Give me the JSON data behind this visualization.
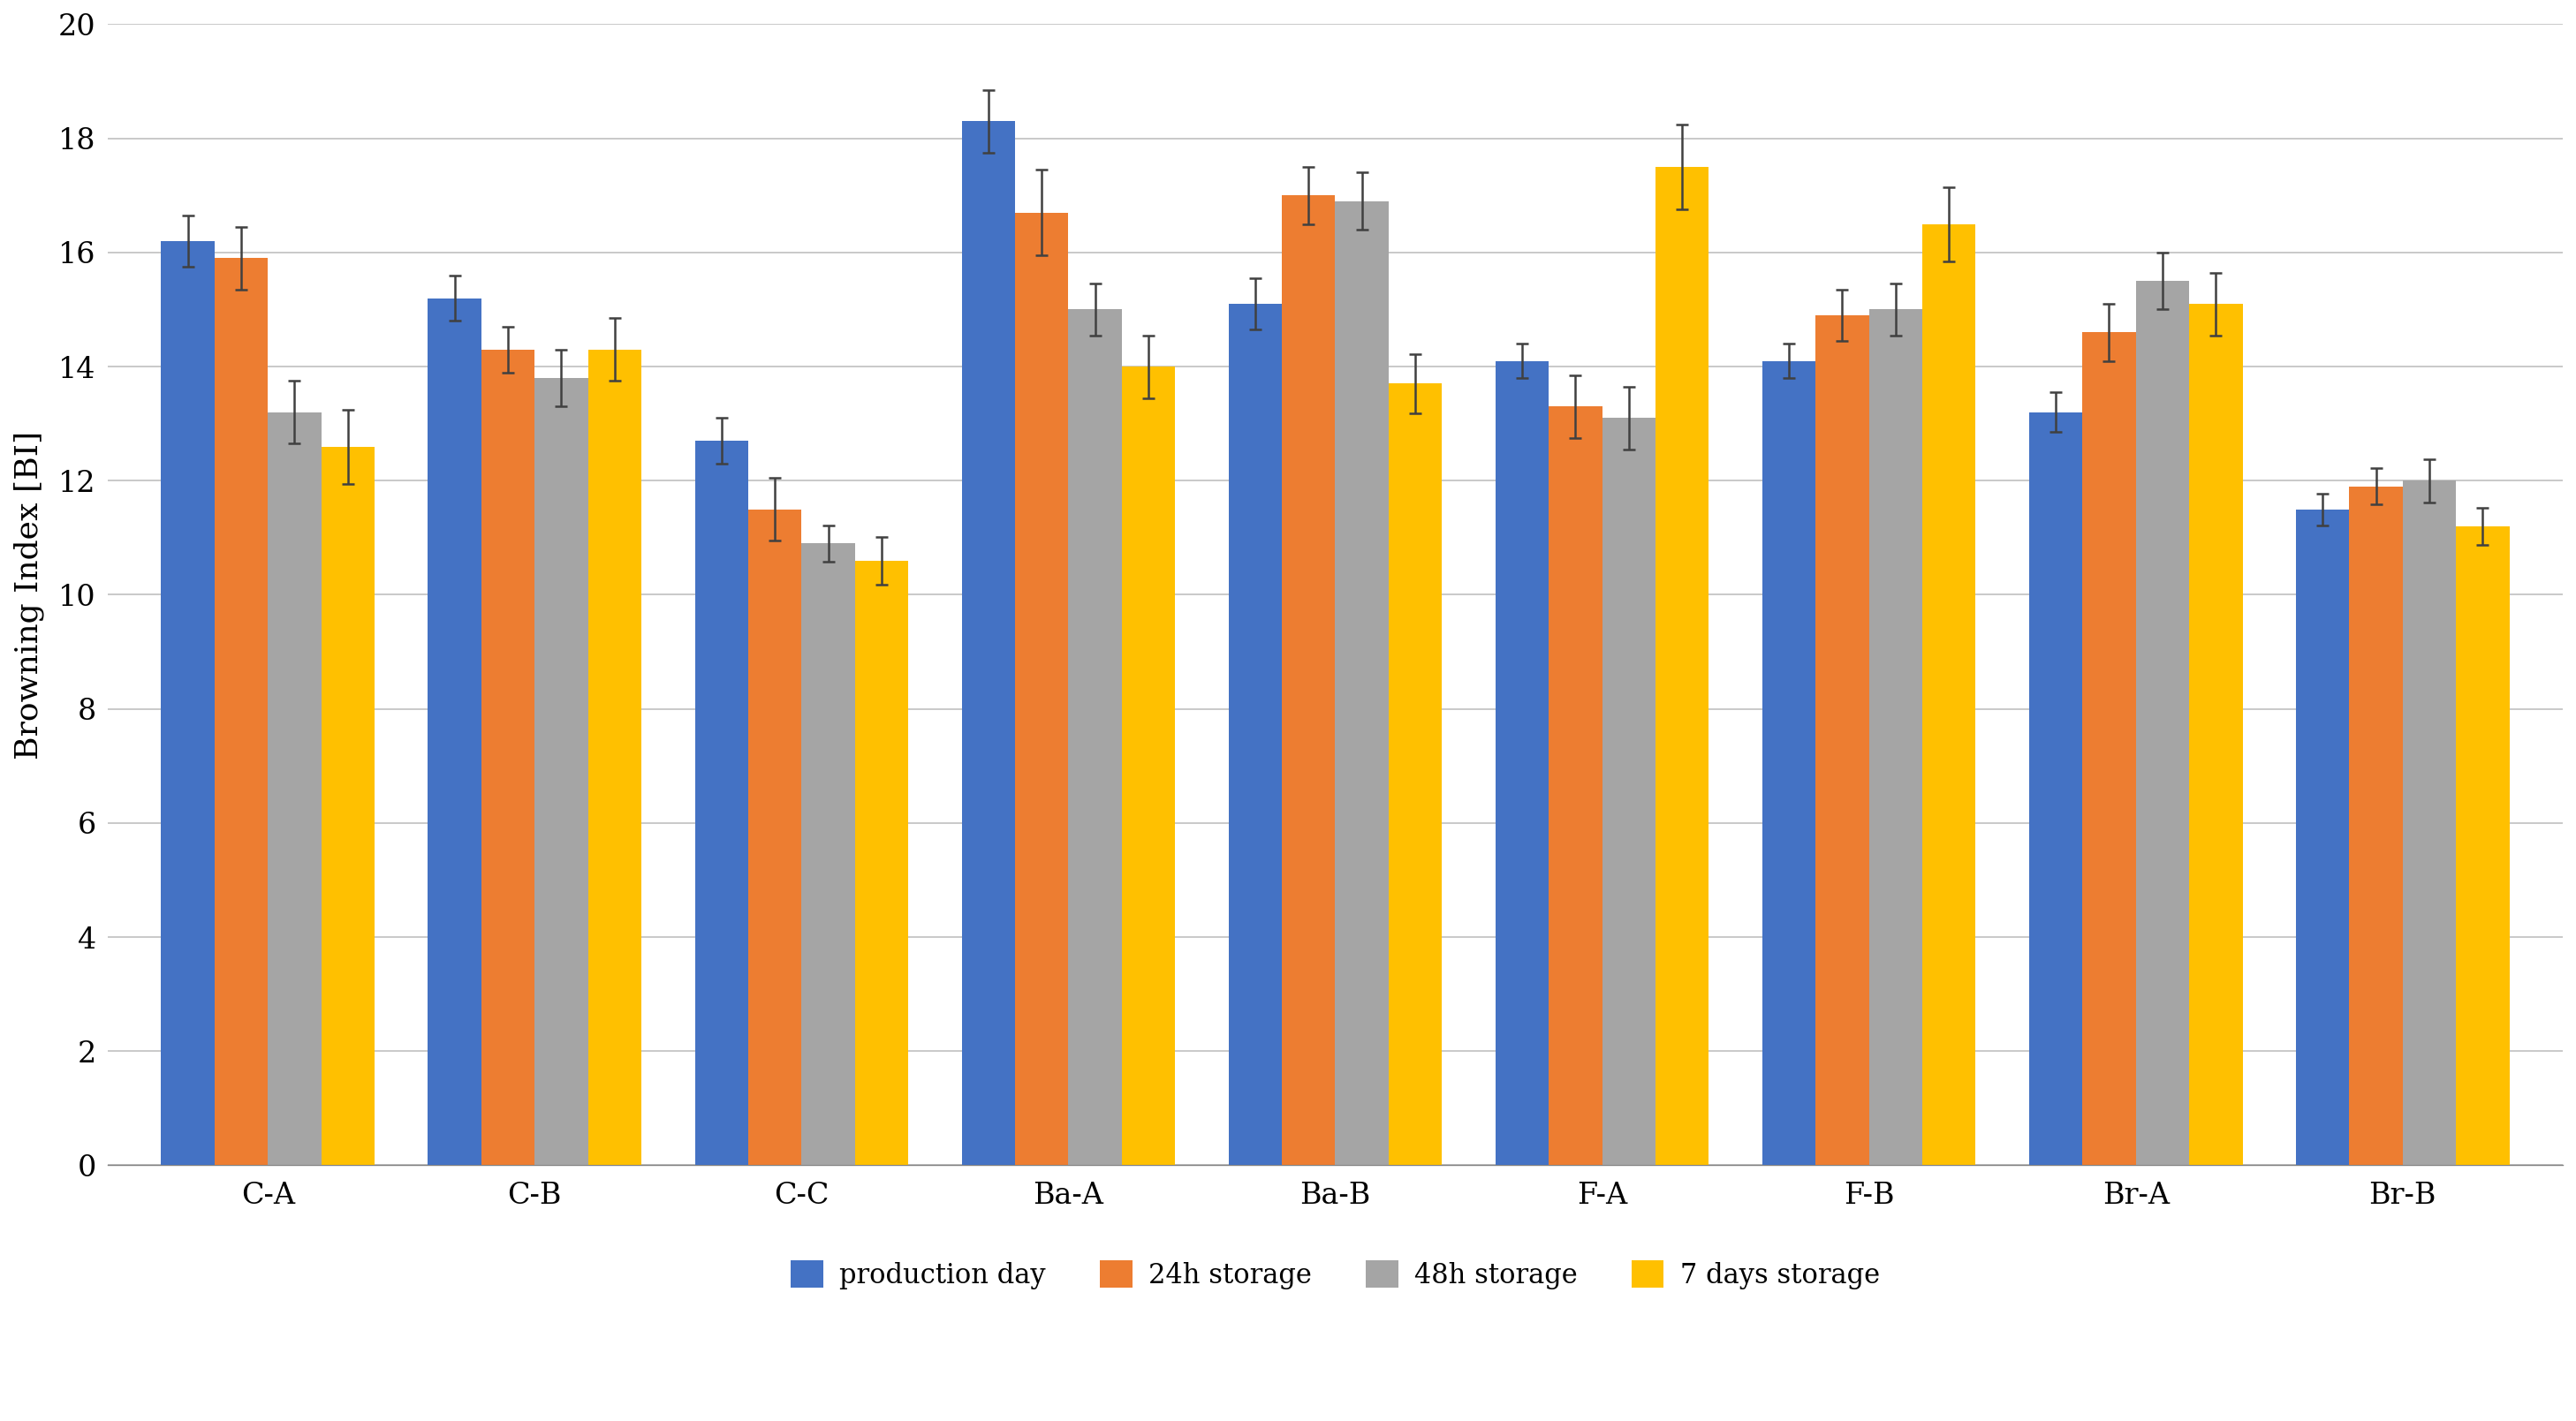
{
  "categories": [
    "C-A",
    "C-B",
    "C-C",
    "Ba-A",
    "Ba-B",
    "F-A",
    "F-B",
    "Br-A",
    "Br-B"
  ],
  "series": {
    "production day": [
      16.2,
      15.2,
      12.7,
      18.3,
      15.1,
      14.1,
      14.1,
      13.2,
      11.5
    ],
    "24h storage": [
      15.9,
      14.3,
      11.5,
      16.7,
      17.0,
      13.3,
      14.9,
      14.6,
      11.9
    ],
    "48h storage": [
      13.2,
      13.8,
      10.9,
      15.0,
      16.9,
      13.1,
      15.0,
      15.5,
      12.0
    ],
    "7 days storage": [
      12.6,
      14.3,
      10.6,
      14.0,
      13.7,
      17.5,
      16.5,
      15.1,
      11.2
    ]
  },
  "errors": {
    "production day": [
      0.45,
      0.4,
      0.4,
      0.55,
      0.45,
      0.3,
      0.3,
      0.35,
      0.28
    ],
    "24h storage": [
      0.55,
      0.4,
      0.55,
      0.75,
      0.5,
      0.55,
      0.45,
      0.5,
      0.32
    ],
    "48h storage": [
      0.55,
      0.5,
      0.32,
      0.45,
      0.5,
      0.55,
      0.45,
      0.5,
      0.38
    ],
    "7 days storage": [
      0.65,
      0.55,
      0.42,
      0.55,
      0.52,
      0.75,
      0.65,
      0.55,
      0.32
    ]
  },
  "colors": {
    "production day": "#4472C4",
    "24h storage": "#ED7D31",
    "48h storage": "#A5A5A5",
    "7 days storage": "#FFC000"
  },
  "series_order": [
    "production day",
    "24h storage",
    "48h storage",
    "7 days storage"
  ],
  "ylabel": "Browning Index [BI]",
  "ylim": [
    0,
    20
  ],
  "yticks": [
    0,
    2,
    4,
    6,
    8,
    10,
    12,
    14,
    16,
    18,
    20
  ],
  "background_color": "#FFFFFF",
  "plot_bg_color": "#FFFFFF",
  "grid_color": "#C0C0C0",
  "bar_width": 0.2,
  "legend_fontsize": 22,
  "axis_label_fontsize": 26,
  "tick_fontsize": 24,
  "errorbar_color": "#404040",
  "errorbar_linewidth": 1.8,
  "errorbar_capsize": 5,
  "errorbar_capthick": 1.8
}
